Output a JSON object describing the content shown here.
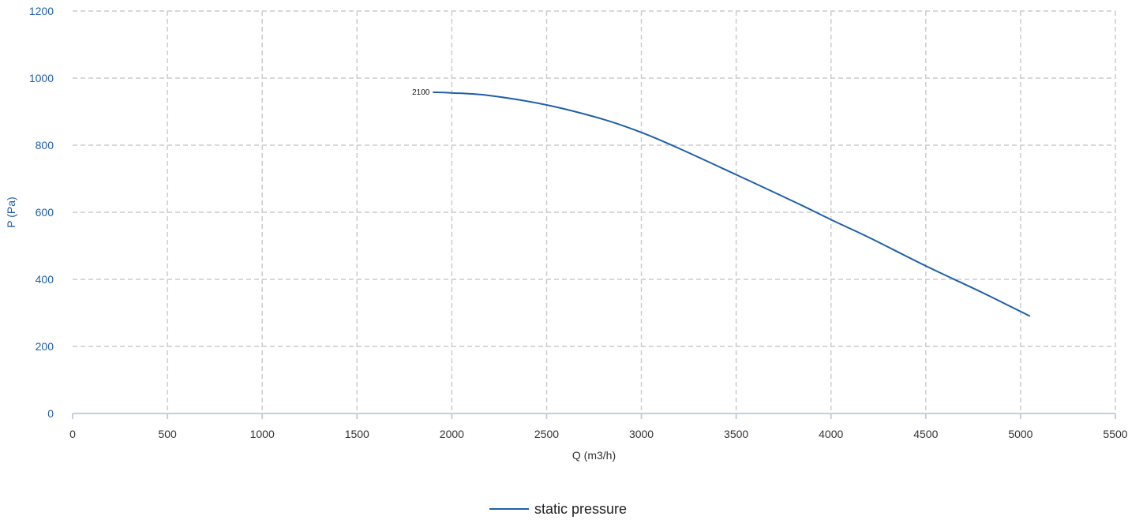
{
  "chart_data": {
    "type": "line",
    "xlabel": "Q (m3/h)",
    "ylabel": "P (Pa)",
    "xlim": [
      0,
      5500
    ],
    "ylim": [
      0,
      1200
    ],
    "x_ticks": [
      "0",
      "500",
      "1000",
      "1500",
      "2000",
      "2500",
      "3000",
      "3500",
      "4000",
      "4500",
      "5000",
      "5500"
    ],
    "y_ticks": [
      "0",
      "200",
      "400",
      "600",
      "800",
      "1000",
      "1200"
    ],
    "grid": true,
    "legend_position": "bottom-center",
    "series": [
      {
        "name": "static pressure",
        "color": "#1f5fa8",
        "start_label": "2100",
        "points": [
          [
            1900,
            958
          ],
          [
            2000,
            956
          ],
          [
            2200,
            948
          ],
          [
            2500,
            920
          ],
          [
            2800,
            877
          ],
          [
            3000,
            838
          ],
          [
            3200,
            790
          ],
          [
            3500,
            712
          ],
          [
            3800,
            633
          ],
          [
            4000,
            578
          ],
          [
            4200,
            525
          ],
          [
            4500,
            440
          ],
          [
            4800,
            360
          ],
          [
            5050,
            290
          ]
        ]
      }
    ]
  }
}
